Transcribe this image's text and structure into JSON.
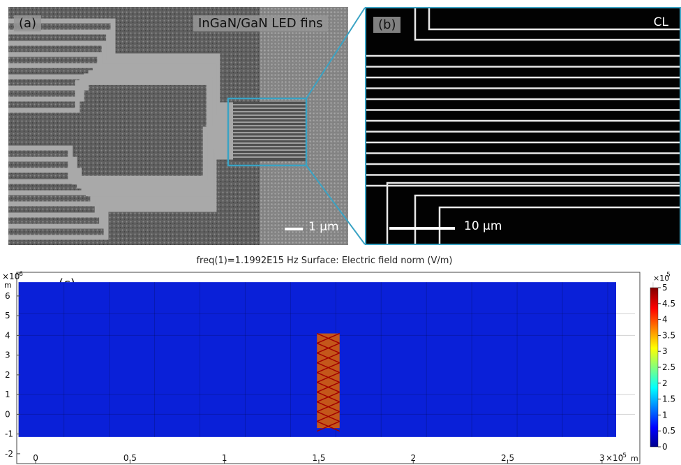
{
  "panel_a": {
    "label": "(a)",
    "title": "InGaN/GaN LED fins",
    "scale": "1 µm"
  },
  "panel_b": {
    "label": "(b)",
    "mode": "CL",
    "scale": "10 µm"
  },
  "panel_c": {
    "label": "(c)",
    "title": "freq(1)=1.1992E15 Hz   Surface: Electric field norm (V/m)",
    "y_multiplier": "×10",
    "y_exponent": "-6",
    "y_unit": "m",
    "x_multiplier": "×10",
    "x_exponent": "-5",
    "x_unit": "m",
    "x_ticks": [
      "0",
      "0.5",
      "1",
      "1.5",
      "2",
      "2.5",
      "3"
    ],
    "y_ticks": [
      "6",
      "5",
      "4",
      "3",
      "2",
      "1",
      "0",
      "-1",
      "-2"
    ],
    "colorbar_multiplier": "×10",
    "colorbar_exponent": "5",
    "colorbar_ticks": [
      "5",
      "4.5",
      "4",
      "3.5",
      "3",
      "2.5",
      "2",
      "1.5",
      "1",
      "0.5",
      "0"
    ]
  },
  "chart_data": {
    "type": "heatmap",
    "title": "freq(1)=1.1992E15 Hz   Surface: Electric field norm (V/m)",
    "xlim": [
      -0.1,
      3.2
    ],
    "ylim": [
      -2.5,
      7.2
    ],
    "colorbar_range": [
      0,
      5
    ],
    "color_scale": "jet",
    "colors": {
      "background": "#0a20d8",
      "hot": "#c00000",
      "cool": "#00008f"
    }
  }
}
